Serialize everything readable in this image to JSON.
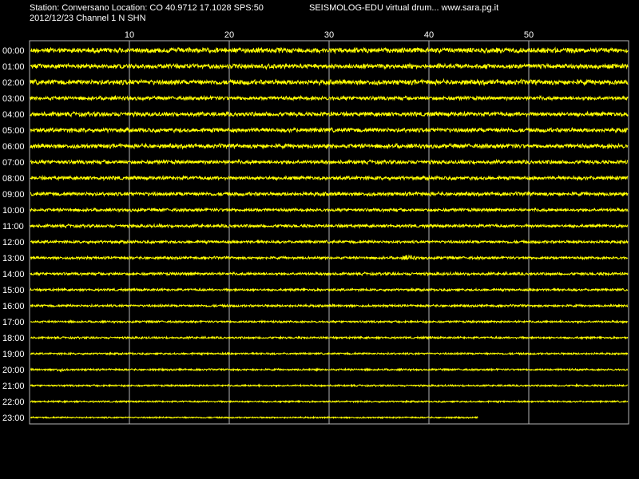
{
  "header": {
    "station_line": "Station: Conversano Location: CO 40.9712 17.1028 SPS:50",
    "date_line": "2012/12/23  Channel 1 N SHN",
    "credit_line": "SEISMOLOG-EDU virtual drum... www.sara.pg.it"
  },
  "colors": {
    "background": "#000000",
    "trace": "#ffff00",
    "grid": "#b4b4b4",
    "text": "#ffffff"
  },
  "chart_data": {
    "type": "line",
    "xlim": [
      0,
      60
    ],
    "x_ticks": [
      10,
      20,
      30,
      40,
      50
    ],
    "rows": [
      "00:00",
      "01:00",
      "02:00",
      "03:00",
      "04:00",
      "05:00",
      "06:00",
      "07:00",
      "08:00",
      "09:00",
      "10:00",
      "11:00",
      "12:00",
      "13:00",
      "14:00",
      "15:00",
      "16:00",
      "17:00",
      "18:00",
      "19:00",
      "20:00",
      "21:00",
      "22:00",
      "23:00"
    ],
    "grid": true,
    "last_row_end_minute": 45,
    "row_amplitude": [
      3.5,
      3.2,
      3.5,
      2.6,
      3,
      3,
      3,
      2.6,
      2.5,
      2.6,
      2.1,
      2.1,
      1.9,
      1.8,
      1.9,
      1.6,
      1.6,
      1.4,
      1.4,
      1.3,
      1.3,
      1.2,
      1.1,
      1.0
    ],
    "events": [
      {
        "row": "13:00",
        "minute": 37,
        "duration": 2,
        "amplitude": 2.4
      },
      {
        "row": "20:00",
        "minute": 2.5,
        "duration": 1,
        "amplitude": 2.2
      }
    ]
  }
}
